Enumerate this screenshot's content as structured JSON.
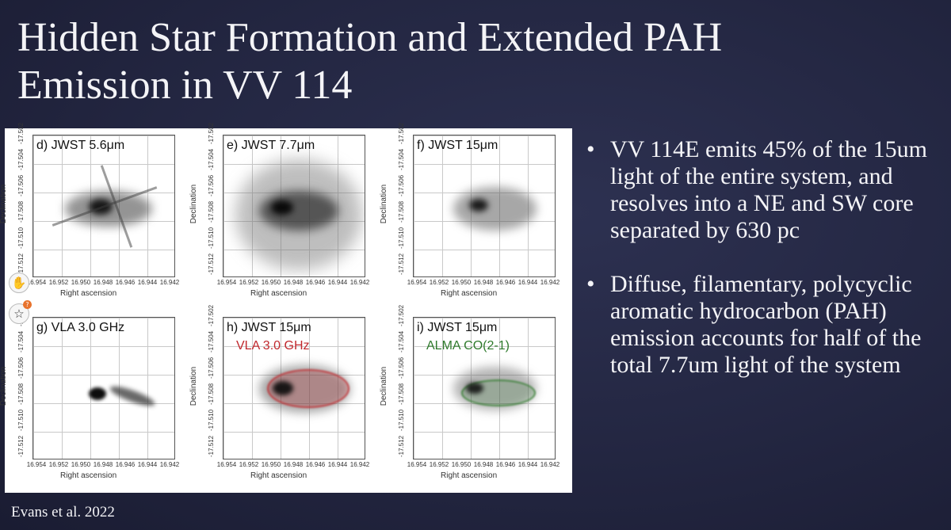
{
  "slide": {
    "title_line1": "Hidden Star Formation and Extended PAH",
    "title_line2": "Emission in VV 114",
    "citation": "Evans et al. 2022"
  },
  "figure": {
    "y_axis_label": "Declination",
    "x_axis_label": "Right ascension",
    "y_ticks": [
      "-17.512",
      "-17.510",
      "-17.508",
      "-17.506",
      "-17.504",
      "-17.502"
    ],
    "x_ticks": [
      "16.954",
      "16.952",
      "16.950",
      "16.948",
      "16.946",
      "16.944",
      "16.942"
    ],
    "panels": [
      {
        "label": "d) JWST 5.6μm",
        "overlay": "",
        "overlay_color": ""
      },
      {
        "label": "e) JWST 7.7μm",
        "overlay": "",
        "overlay_color": ""
      },
      {
        "label": "f) JWST 15μm",
        "overlay": "",
        "overlay_color": ""
      },
      {
        "label": "g) VLA 3.0 GHz",
        "overlay": "",
        "overlay_color": ""
      },
      {
        "label": "h) JWST 15μm",
        "overlay": "VLA 3.0 GHz",
        "overlay_color": "#c0282d"
      },
      {
        "label": "i) JWST 15μm",
        "overlay": "ALMA CO(2-1)",
        "overlay_color": "#2f7a2c"
      }
    ]
  },
  "bullets": [
    "VV 114E emits 45% of the 15um light of the entire system, and resolves into a NE and SW core separated by 630 pc",
    "Diffuse, filamentary, polycyclic aromatic hydrocarbon (PAH) emission accounts for half of the total 7.7um light of the system"
  ],
  "widgets": {
    "top_icon": "hand-wave-icon",
    "bottom_icon": "star-icon",
    "badge_text": "?"
  },
  "colors": {
    "background": "#252842",
    "text": "#f4f4f7",
    "vla_contour": "#c0282d",
    "alma_contour": "#2f7a2c"
  }
}
